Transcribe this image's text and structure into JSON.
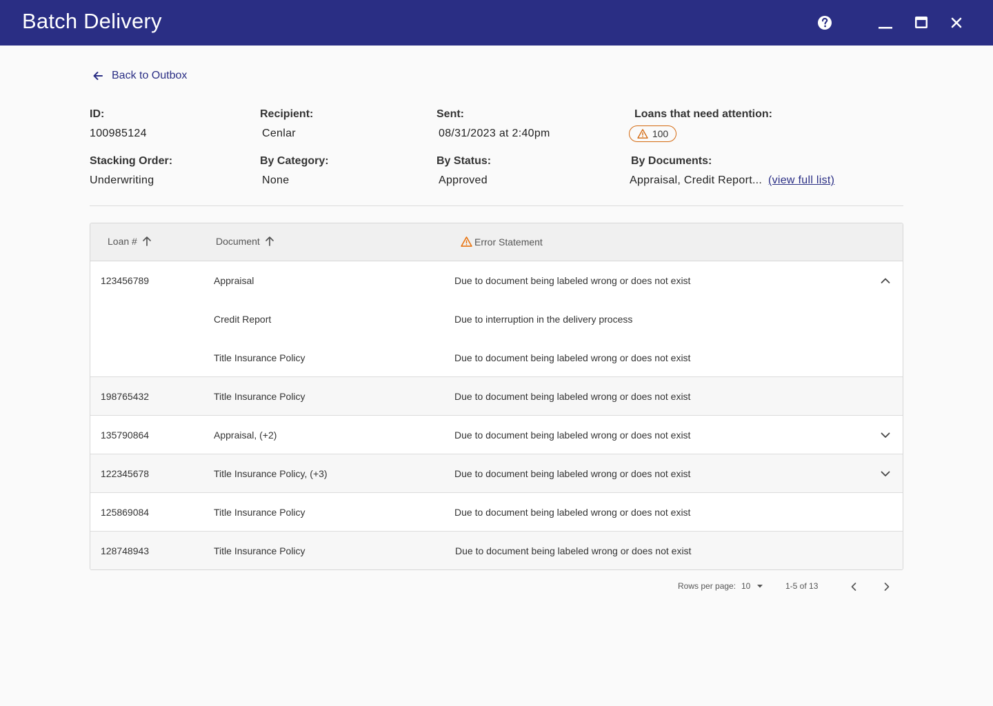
{
  "window": {
    "title": "Batch Delivery",
    "help_icon": "help-circle-icon",
    "minimize_icon": "minimize-icon",
    "maximize_icon": "maximize-icon",
    "close_icon": "close-icon",
    "bar_color": "#2a2e84"
  },
  "nav": {
    "back_label": "Back to Outbox",
    "back_icon": "arrow-left-icon"
  },
  "meta": {
    "id_label": "ID:",
    "id_value": "100985124",
    "recipient_label": "Recipient:",
    "recipient_value": "Cenlar",
    "sent_label": "Sent:",
    "sent_value": "08/31/2023 at 2:40pm",
    "attention_label": "Loans that need attention:",
    "attention_count": "100",
    "attention_icon": "warning-icon",
    "stacking_label": "Stacking Order:",
    "stacking_value": "Underwriting",
    "category_label": "By Category:",
    "category_value": "None",
    "status_label": "By Status:",
    "status_value": "Approved",
    "documents_label": "By Documents:",
    "documents_value": "Appraisal, Credit Report...",
    "documents_link": "(view full list)"
  },
  "table": {
    "headers": {
      "loan": "Loan #",
      "document": "Document",
      "error": "Error Statement"
    },
    "rows": [
      {
        "loan": "123456789",
        "document": "Appraisal",
        "error": "Due to document being labeled wrong or does not exist",
        "expander": "chevron-up-icon"
      },
      {
        "loan": "",
        "document": "Credit Report",
        "error": "Due to interruption in the delivery process"
      },
      {
        "loan": "",
        "document": "Title Insurance Policy",
        "error": "Due to document being labeled wrong or does not exist"
      },
      {
        "loan": "198765432",
        "document": "Title Insurance Policy",
        "error": "Due to document being labeled wrong or does not exist"
      },
      {
        "loan": "135790864",
        "document": "Appraisal, (+2)",
        "error": "Due to document being labeled wrong or does not exist",
        "expander": "chevron-down-icon"
      },
      {
        "loan": "122345678",
        "document": "Title Insurance Policy, (+3)",
        "error": "Due to document being labeled wrong or does not exist",
        "expander": "chevron-down-icon"
      },
      {
        "loan": "125869084",
        "document": "Title Insurance Policy",
        "error": "Due to document being labeled wrong or does not exist"
      },
      {
        "loan": "128748943",
        "document": "Title Insurance Policy",
        "error": "Due to document being labeled wrong or does not exist"
      }
    ]
  },
  "pagination": {
    "rows_per_page_label": "Rows per page:",
    "rows_per_page_value": "10",
    "range_label": "1-5 of 13"
  }
}
